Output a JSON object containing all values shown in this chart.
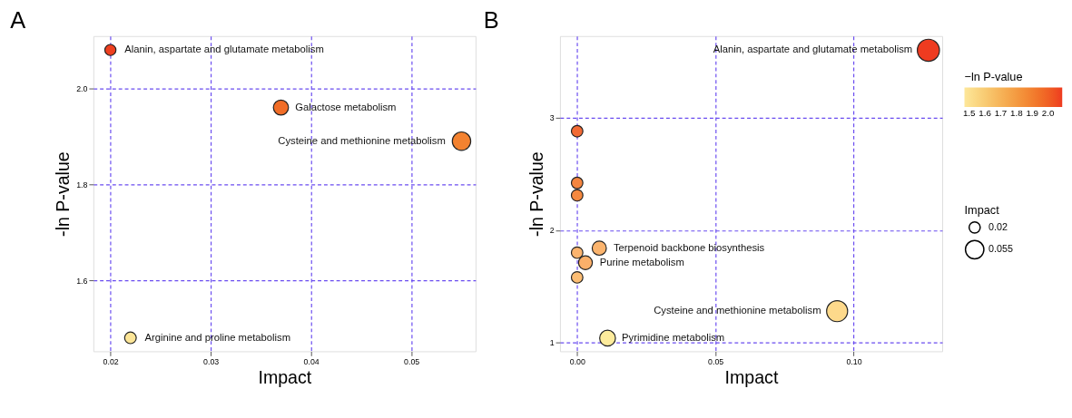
{
  "chart_data": [
    {
      "type": "bubble",
      "title": "A",
      "xlabel": "Impact",
      "ylabel": "-ln P-value",
      "x": [
        0.02,
        0.037,
        0.055,
        0.022
      ],
      "values": [
        2.08,
        1.96,
        1.89,
        1.48
      ],
      "sizes": [
        0.02,
        0.037,
        0.055,
        0.022
      ],
      "size_legend": [
        0.02,
        0.055
      ],
      "legend_title": "Impact",
      "cvalues": [
        2.08,
        1.96,
        1.89,
        1.48
      ],
      "clabel": "−ln P-value",
      "clim": [
        1.47,
        2.09
      ],
      "cticks": [
        1.5,
        1.6,
        1.7,
        1.8,
        1.9,
        {
          "value": 2,
          "label": "2.0"
        }
      ],
      "xlim": [
        0.0183,
        0.0564
      ],
      "ylim": [
        1.452,
        2.109
      ],
      "xticks": [
        0.02,
        0.03,
        0.04,
        0.05
      ],
      "yticks": [
        1.6,
        1.8,
        {
          "value": 2,
          "label": "2.0"
        }
      ],
      "grid": true,
      "marker": "circle",
      "annotations": [
        {
          "text": "Alanin, aspartate and glutamate metabolism",
          "x": 0.02,
          "y": 2.08
        },
        {
          "text": "Galactose metabolism",
          "x": 0.037,
          "y": 1.96
        },
        {
          "text": "Cysteine and methionine metabolism",
          "x": 0.055,
          "y": 1.89
        },
        {
          "text": "Arginine and proline metabolism",
          "x": 0.022,
          "y": 1.48
        }
      ]
    },
    {
      "type": "bubble",
      "title": "B",
      "xlabel": "Impact",
      "ylabel": "-ln P-value",
      "x": [
        0.127,
        0,
        0,
        0,
        0.008,
        0,
        0.003,
        0,
        0.094,
        0.011
      ],
      "values": [
        3.6,
        2.88,
        2.42,
        2.31,
        1.84,
        1.8,
        1.71,
        1.58,
        1.28,
        1.04
      ],
      "sizes": [
        1,
        0.27,
        0.27,
        0.27,
        0.41,
        0.27,
        0.39,
        0.27,
        0.9,
        0.51
      ],
      "colors": [
        "#ee3b20",
        "#f26a35",
        "#f5853f",
        "#f5883f",
        "#fbb46e",
        "#fbb46e",
        "#fbb06a",
        "#fcbd73",
        "#fdd98b",
        "#fdeb9c"
      ],
      "xlim": [
        -0.0062,
        0.132
      ],
      "ylim": [
        0.923,
        3.726
      ],
      "xticks": [
        {
          "value": 0,
          "label": "0.00"
        },
        0.05,
        {
          "value": 0.1,
          "label": "0.10"
        }
      ],
      "yticks": [
        1,
        2,
        3
      ],
      "grid": true,
      "marker": "circle",
      "annotations": [
        {
          "text": "Alanin, aspartate and glutamate metabolism",
          "x": 0.127,
          "y": 3.6
        },
        {
          "text": "Terpenoid backbone biosynthesis",
          "x": 0.008,
          "y": 1.84
        },
        {
          "text": "Purine metabolism",
          "x": 0.003,
          "y": 1.71
        },
        {
          "text": "Cysteine and methionine metabolism",
          "x": 0.094,
          "y": 1.28
        },
        {
          "text": "Pyrimidine metabolism",
          "x": 0.011,
          "y": 1.04
        }
      ]
    }
  ]
}
